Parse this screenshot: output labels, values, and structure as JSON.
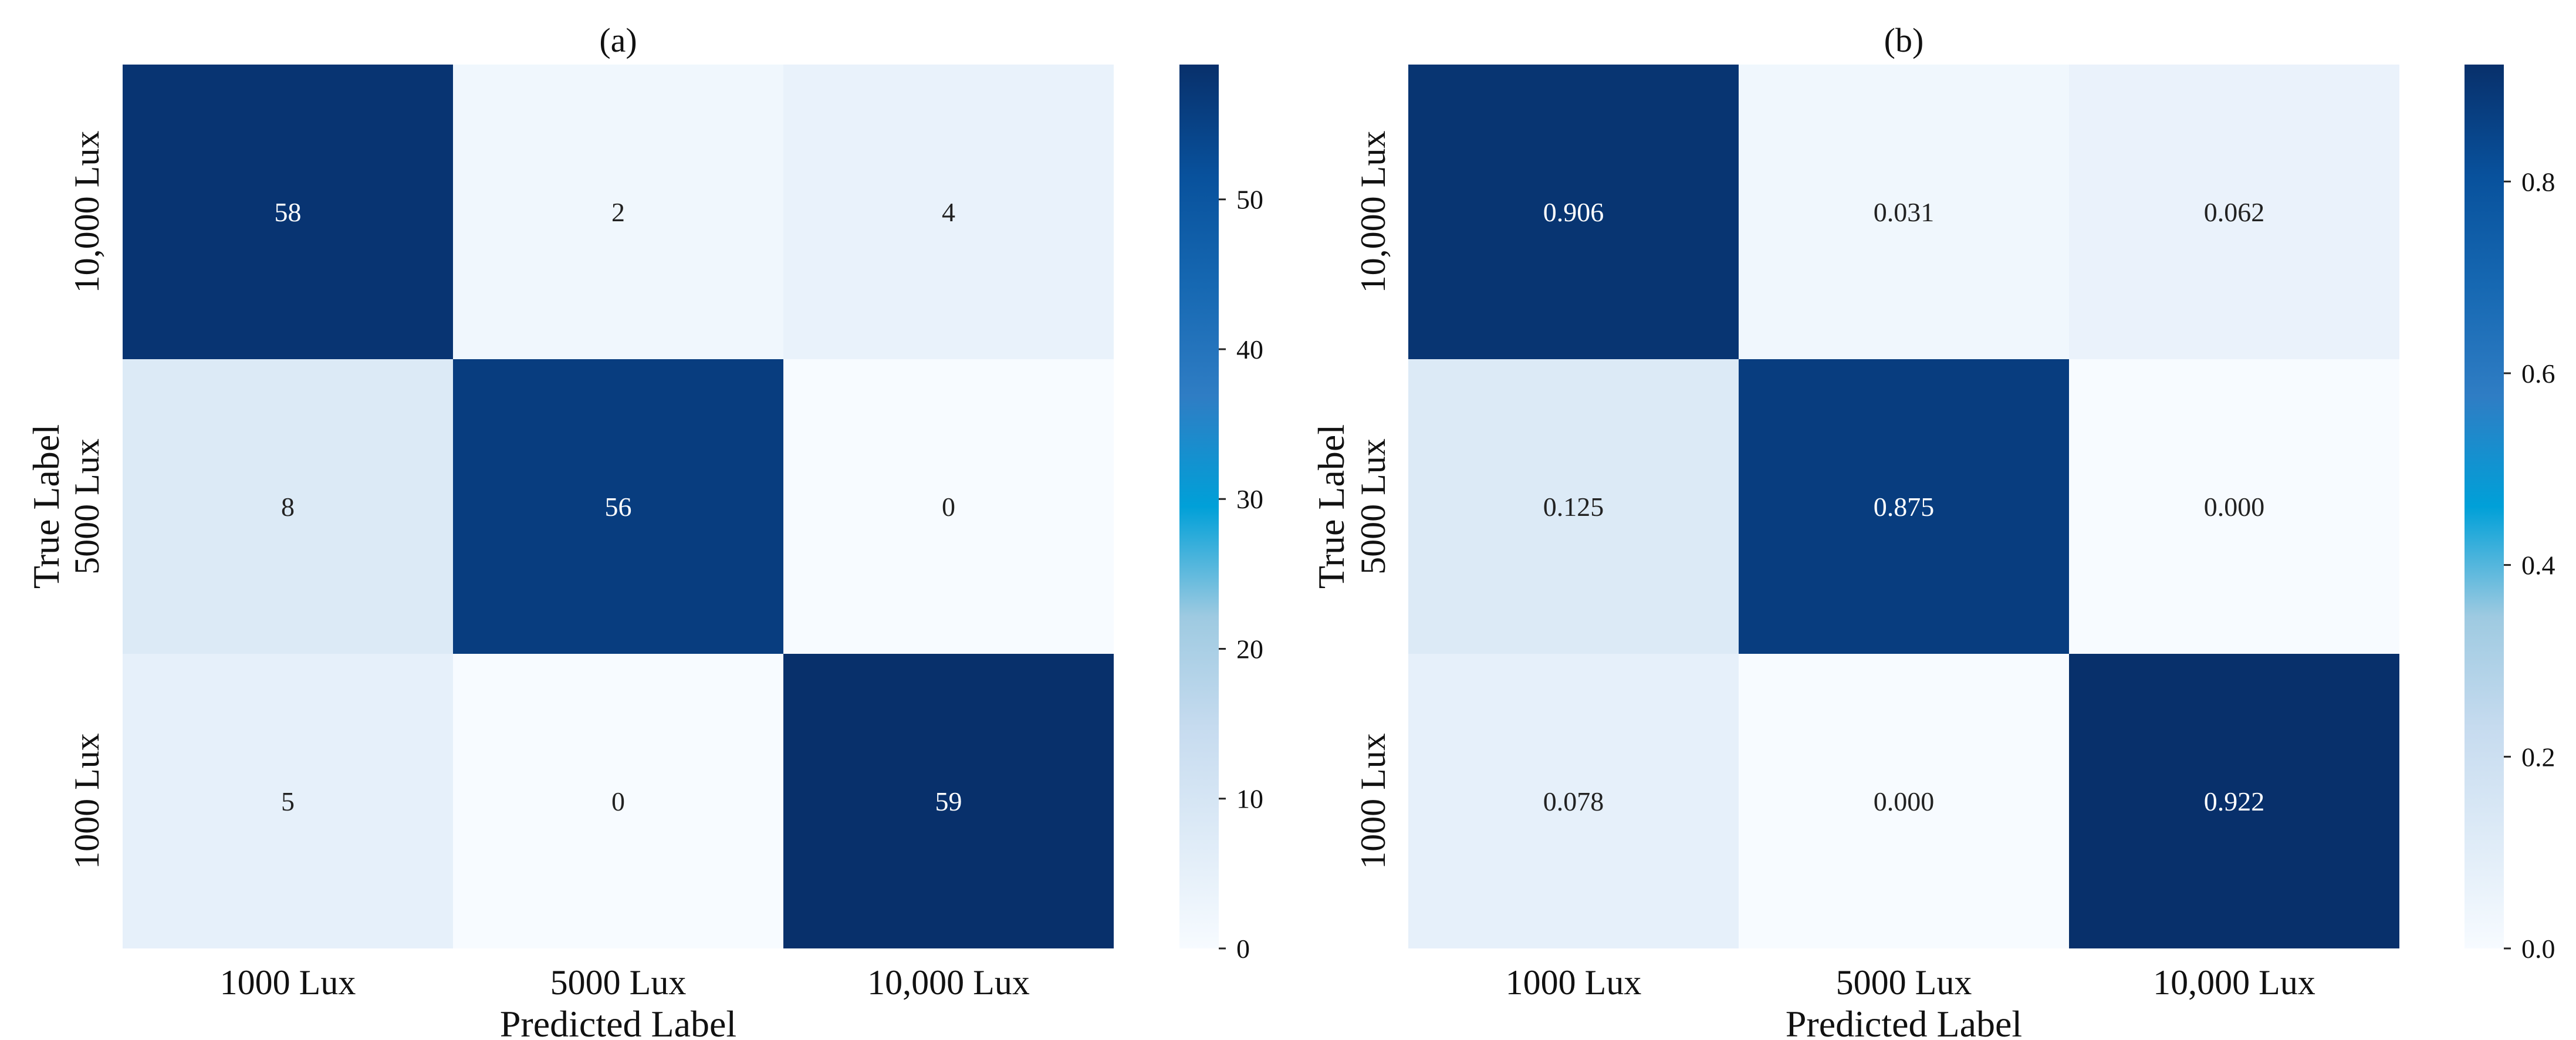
{
  "chart_data": [
    {
      "type": "heatmap",
      "title": "(a)",
      "xlabel": "Predicted Label",
      "ylabel": "True Label",
      "x_categories": [
        "1000 Lux",
        "5000 Lux",
        "10,000 Lux"
      ],
      "y_categories": [
        "10,000 Lux",
        "5000 Lux",
        "1000 Lux"
      ],
      "values": [
        [
          58,
          2,
          4
        ],
        [
          8,
          56,
          0
        ],
        [
          5,
          0,
          59
        ]
      ],
      "cell_labels": [
        [
          "58",
          "2",
          "4"
        ],
        [
          "8",
          "56",
          "0"
        ],
        [
          "5",
          "0",
          "59"
        ]
      ],
      "colorbar": {
        "min": 0,
        "max": 59,
        "ticks": [
          0,
          10,
          20,
          30,
          40,
          50
        ],
        "tick_labels": [
          "0",
          "10",
          "20",
          "30",
          "40",
          "50"
        ]
      },
      "colormap": "Blues"
    },
    {
      "type": "heatmap",
      "title": "(b)",
      "xlabel": "Predicted Label",
      "ylabel": "True Label",
      "x_categories": [
        "1000 Lux",
        "5000 Lux",
        "10,000 Lux"
      ],
      "y_categories": [
        "10,000 Lux",
        "5000 Lux",
        "1000 Lux"
      ],
      "values": [
        [
          0.906,
          0.031,
          0.062
        ],
        [
          0.125,
          0.875,
          0.0
        ],
        [
          0.078,
          0.0,
          0.922
        ]
      ],
      "cell_labels": [
        [
          "0.906",
          "0.031",
          "0.062"
        ],
        [
          "0.125",
          "0.875",
          "0.000"
        ],
        [
          "0.078",
          "0.000",
          "0.922"
        ]
      ],
      "colorbar": {
        "min": 0,
        "max": 0.922,
        "ticks": [
          0.0,
          0.2,
          0.4,
          0.6,
          0.8
        ],
        "tick_labels": [
          "0.0",
          "0.2",
          "0.4",
          "0.6",
          "0.8"
        ]
      },
      "colormap": "Blues"
    }
  ]
}
